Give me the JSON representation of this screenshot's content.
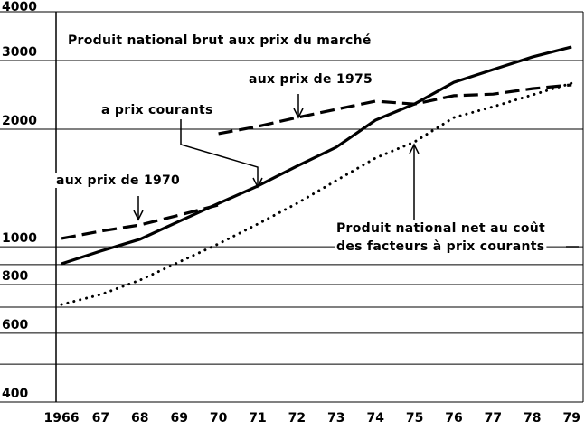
{
  "chart_data": {
    "type": "line",
    "log_scale": true,
    "annotations": [
      "Produit national brut aux prix du marché",
      "aux prix de 1975",
      "a prix courants",
      "aux prix de 1970",
      "Produit national net au coût",
      "des facteurs à prix courants"
    ],
    "categories": [
      "1966",
      "67",
      "68",
      "69",
      "70",
      "71",
      "72",
      "73",
      "74",
      "75",
      "76",
      "77",
      "78",
      "79"
    ],
    "ylim": [
      400,
      4000
    ],
    "yticks": [
      400,
      600,
      800,
      1000,
      2000,
      3000,
      4000
    ],
    "minor_grid": [
      500,
      700,
      900
    ],
    "grid": true,
    "series": [
      {
        "color": "#000000",
        "style": "solid",
        "values": [
          904,
          975,
          1045,
          1162,
          1291,
          1430,
          1608,
          1798,
          2110,
          2322,
          2638,
          2844,
          3063,
          3250
        ]
      },
      {
        "color": "#000000",
        "style": "dashed",
        "values": [
          1050,
          1096,
          1137,
          1205,
          1279,
          null,
          null,
          null,
          null,
          null,
          null,
          null,
          null,
          null
        ]
      },
      {
        "color": "#000000",
        "style": "dashed",
        "values": [
          null,
          null,
          null,
          null,
          1949,
          2033,
          2143,
          2249,
          2360,
          2320,
          2438,
          2460,
          2541,
          2598
        ]
      },
      {
        "color": "#000000",
        "style": "dotted",
        "values": [
          711,
          754,
          821,
          914,
          1017,
          1143,
          1291,
          1477,
          1687,
          1857,
          2143,
          2284,
          2449,
          2624
        ]
      }
    ]
  }
}
